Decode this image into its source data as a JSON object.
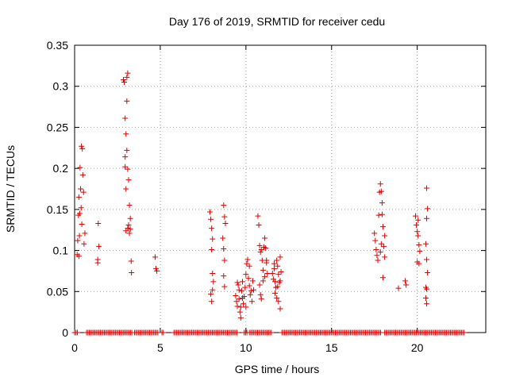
{
  "chart_data": {
    "type": "scatter",
    "title": "Day 176 of 2019, SRMTID for receiver cedu",
    "xlabel": "GPS time / hours",
    "ylabel": "SRMTID / TECUs",
    "xlim": [
      0,
      24
    ],
    "ylim": [
      0,
      0.35
    ],
    "xticks": [
      0,
      5,
      10,
      15,
      20
    ],
    "xtick_labels": [
      "0",
      "5",
      "10",
      "15",
      "20"
    ],
    "yticks": [
      0,
      0.05,
      0.1,
      0.15,
      0.2,
      0.25,
      0.3,
      0.35
    ],
    "ytick_labels": [
      "0",
      "0.05",
      "0.1",
      "0.15",
      "0.2",
      "0.25",
      "0.3",
      "0.35"
    ],
    "grid": true,
    "marker": "plus",
    "color": "#e00000",
    "series": [
      {
        "name": "SRMTID",
        "points": [
          [
            0.15,
            0.095
          ],
          [
            0.18,
            0.112
          ],
          [
            0.22,
            0.143
          ],
          [
            0.25,
            0.165
          ],
          [
            0.28,
            0.118
          ],
          [
            0.32,
            0.201
          ],
          [
            0.35,
            0.175
          ],
          [
            0.38,
            0.152
          ],
          [
            0.42,
            0.132
          ],
          [
            0.45,
            0.224
          ],
          [
            0.48,
            0.192
          ],
          [
            0.52,
            0.171
          ],
          [
            0.55,
            0.108
          ],
          [
            0.6,
            0.121
          ],
          [
            0.25,
            0.093
          ],
          [
            0.4,
            0.227
          ],
          [
            0.3,
            0.145
          ],
          [
            1.35,
            0.089
          ],
          [
            1.38,
            0.133
          ],
          [
            1.42,
            0.105
          ],
          [
            1.35,
            0.085
          ],
          [
            2.85,
            0.308
          ],
          [
            2.9,
            0.305
          ],
          [
            2.95,
            0.261
          ],
          [
            3.0,
            0.242
          ],
          [
            3.05,
            0.311
          ],
          [
            3.1,
            0.316
          ],
          [
            2.95,
            0.202
          ],
          [
            3.0,
            0.175
          ],
          [
            3.05,
            0.222
          ],
          [
            3.1,
            0.199
          ],
          [
            3.15,
            0.186
          ],
          [
            3.2,
            0.155
          ],
          [
            3.25,
            0.139
          ],
          [
            3.0,
            0.124
          ],
          [
            3.1,
            0.127
          ],
          [
            3.15,
            0.131
          ],
          [
            3.2,
            0.121
          ],
          [
            3.3,
            0.087
          ],
          [
            3.32,
            0.073
          ],
          [
            3.05,
            0.282
          ],
          [
            2.95,
            0.214
          ],
          [
            3.25,
            0.126
          ],
          [
            4.7,
            0.092
          ],
          [
            4.75,
            0.078
          ],
          [
            4.8,
            0.075
          ],
          [
            7.9,
            0.147
          ],
          [
            7.95,
            0.138
          ],
          [
            8.0,
            0.127
          ],
          [
            8.05,
            0.114
          ],
          [
            8.0,
            0.101
          ],
          [
            8.05,
            0.072
          ],
          [
            8.1,
            0.062
          ],
          [
            7.95,
            0.047
          ],
          [
            8.0,
            0.038
          ],
          [
            8.05,
            0.052
          ],
          [
            8.7,
            0.155
          ],
          [
            8.75,
            0.141
          ],
          [
            8.8,
            0.133
          ],
          [
            8.65,
            0.115
          ],
          [
            8.7,
            0.102
          ],
          [
            8.75,
            0.088
          ],
          [
            8.7,
            0.069
          ],
          [
            8.75,
            0.056
          ],
          [
            9.4,
            0.045
          ],
          [
            9.45,
            0.038
          ],
          [
            9.5,
            0.032
          ],
          [
            9.55,
            0.058
          ],
          [
            9.6,
            0.041
          ],
          [
            9.65,
            0.025
          ],
          [
            9.7,
            0.018
          ],
          [
            9.75,
            0.051
          ],
          [
            9.8,
            0.062
          ],
          [
            9.85,
            0.035
          ],
          [
            9.9,
            0.044
          ],
          [
            9.95,
            0.055
          ],
          [
            10.0,
            0.071
          ],
          [
            10.05,
            0.084
          ],
          [
            10.1,
            0.089
          ],
          [
            10.15,
            0.066
          ],
          [
            10.2,
            0.057
          ],
          [
            10.25,
            0.046
          ],
          [
            10.3,
            0.051
          ],
          [
            10.35,
            0.038
          ],
          [
            9.5,
            0.061
          ],
          [
            9.6,
            0.052
          ],
          [
            9.7,
            0.031
          ],
          [
            9.8,
            0.042
          ],
          [
            10.0,
            0.031
          ],
          [
            10.2,
            0.081
          ],
          [
            10.4,
            0.063
          ],
          [
            10.45,
            0.052
          ],
          [
            10.7,
            0.142
          ],
          [
            10.75,
            0.131
          ],
          [
            10.8,
            0.106
          ],
          [
            10.85,
            0.098
          ],
          [
            10.9,
            0.101
          ],
          [
            10.95,
            0.088
          ],
          [
            11.0,
            0.076
          ],
          [
            11.05,
            0.104
          ],
          [
            11.1,
            0.115
          ],
          [
            11.15,
            0.103
          ],
          [
            11.2,
            0.088
          ],
          [
            11.25,
            0.072
          ],
          [
            10.8,
            0.058
          ],
          [
            10.85,
            0.046
          ],
          [
            10.9,
            0.041
          ],
          [
            11.0,
            0.063
          ],
          [
            11.1,
            0.068
          ],
          [
            11.2,
            0.085
          ],
          [
            11.55,
            0.072
          ],
          [
            11.6,
            0.065
          ],
          [
            11.65,
            0.078
          ],
          [
            11.7,
            0.062
          ],
          [
            11.75,
            0.055
          ],
          [
            11.8,
            0.088
          ],
          [
            11.85,
            0.081
          ],
          [
            11.9,
            0.071
          ],
          [
            11.95,
            0.061
          ],
          [
            12.0,
            0.092
          ],
          [
            12.05,
            0.074
          ],
          [
            11.7,
            0.048
          ],
          [
            11.8,
            0.042
          ],
          [
            11.9,
            0.038
          ],
          [
            12.0,
            0.029
          ],
          [
            11.65,
            0.084
          ],
          [
            11.85,
            0.056
          ],
          [
            12.0,
            0.063
          ],
          [
            17.5,
            0.121
          ],
          [
            17.55,
            0.112
          ],
          [
            17.6,
            0.101
          ],
          [
            17.65,
            0.094
          ],
          [
            17.7,
            0.088
          ],
          [
            17.75,
            0.143
          ],
          [
            17.8,
            0.171
          ],
          [
            17.85,
            0.181
          ],
          [
            17.9,
            0.172
          ],
          [
            17.95,
            0.158
          ],
          [
            18.0,
            0.129
          ],
          [
            18.05,
            0.105
          ],
          [
            18.1,
            0.118
          ],
          [
            18.0,
            0.067
          ],
          [
            17.85,
            0.098
          ],
          [
            17.9,
            0.108
          ],
          [
            17.95,
            0.144
          ],
          [
            18.1,
            0.092
          ],
          [
            18.9,
            0.054
          ],
          [
            19.3,
            0.063
          ],
          [
            19.35,
            0.058
          ],
          [
            19.9,
            0.142
          ],
          [
            19.95,
            0.131
          ],
          [
            20.0,
            0.123
          ],
          [
            20.05,
            0.118
          ],
          [
            20.1,
            0.107
          ],
          [
            20.15,
            0.099
          ],
          [
            20.0,
            0.086
          ],
          [
            20.1,
            0.084
          ],
          [
            20.05,
            0.137
          ],
          [
            20.55,
            0.176
          ],
          [
            20.6,
            0.151
          ],
          [
            20.55,
            0.139
          ],
          [
            20.5,
            0.108
          ],
          [
            20.55,
            0.089
          ],
          [
            20.6,
            0.073
          ],
          [
            20.5,
            0.055
          ],
          [
            20.55,
            0.053
          ],
          [
            20.5,
            0.042
          ],
          [
            20.55,
            0.035
          ]
        ],
        "zero_segments": [
          [
            0.0,
            0.2
          ],
          [
            0.7,
            3.4
          ],
          [
            3.5,
            4.9
          ],
          [
            5.1,
            5.2
          ],
          [
            5.8,
            9.5
          ],
          [
            9.9,
            10.1
          ],
          [
            10.2,
            11.5
          ],
          [
            12.1,
            17.9
          ],
          [
            18.1,
            22.8
          ]
        ],
        "zero_step": 0.08
      }
    ]
  }
}
